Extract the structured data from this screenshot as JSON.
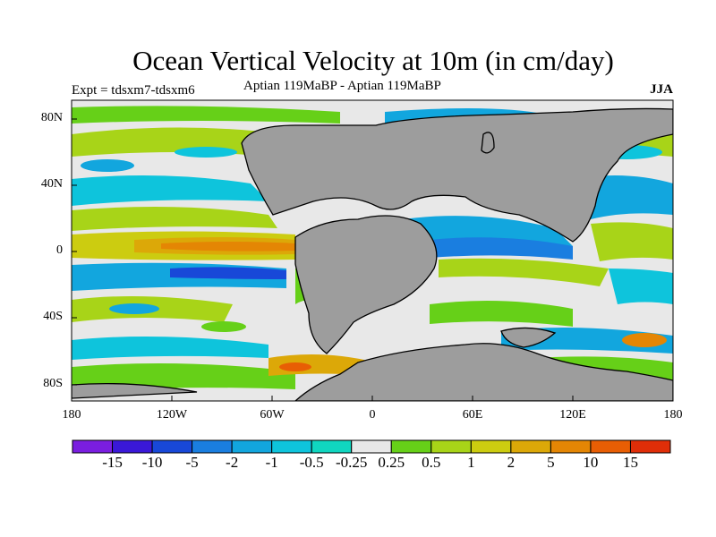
{
  "title": "Ocean Vertical Velocity at 10m (in cm/day)",
  "experiment": "Expt = tdsxm7-tdsxm6",
  "subtitle": "Aptian   119MaBP - Aptian   119MaBP",
  "season": "JJA",
  "lat_labels": [
    "80N",
    "40N",
    "0",
    "40S",
    "80S"
  ],
  "lon_labels": [
    "180",
    "120W",
    "60W",
    "0",
    "60E",
    "120E",
    "180"
  ],
  "colorbar": {
    "labels": [
      "-15",
      "-10",
      "-5",
      "-2",
      "-1",
      "-0.5",
      "-0.25",
      "0.25",
      "0.5",
      "1",
      "2",
      "5",
      "10",
      "15"
    ],
    "colors": [
      "#7a1ee0",
      "#3a18d8",
      "#1848d8",
      "#1a7ee0",
      "#12a6de",
      "#0ec4dc",
      "#10d6c0",
      "#e8e8e8",
      "#66d018",
      "#a8d418",
      "#cccc10",
      "#dca808",
      "#e48604",
      "#e85e04",
      "#e02e08"
    ]
  },
  "colors": {
    "land": "#9d9d9d",
    "ocean_neutral": "#e8e8e8",
    "coast": "#000000"
  }
}
